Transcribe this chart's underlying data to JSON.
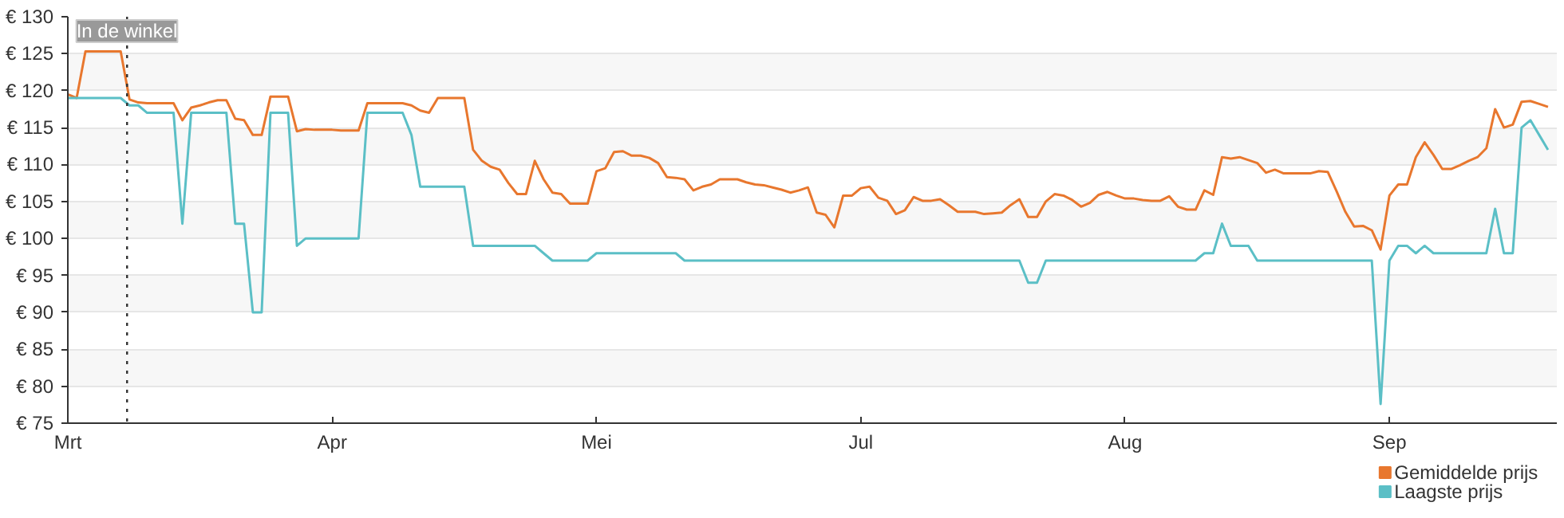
{
  "chart_data": {
    "type": "line",
    "categories": [
      "Mrt",
      null,
      null,
      null,
      null,
      null,
      null,
      null,
      null,
      null,
      null,
      null,
      null,
      null,
      null,
      null,
      null,
      null,
      null,
      null,
      null,
      null,
      null,
      null,
      null,
      null,
      null,
      null,
      null,
      null,
      "Apr",
      null,
      null,
      null,
      null,
      null,
      null,
      null,
      null,
      null,
      null,
      null,
      null,
      null,
      null,
      null,
      null,
      null,
      null,
      null,
      null,
      null,
      null,
      null,
      null,
      null,
      null,
      null,
      null,
      null,
      "Mei",
      null,
      null,
      null,
      null,
      null,
      null,
      null,
      null,
      null,
      null,
      null,
      null,
      null,
      null,
      null,
      null,
      null,
      null,
      null,
      null,
      null,
      null,
      null,
      null,
      null,
      null,
      null,
      null,
      null,
      "Jul",
      null,
      null,
      null,
      null,
      null,
      null,
      null,
      null,
      null,
      null,
      null,
      null,
      null,
      null,
      null,
      null,
      null,
      null,
      null,
      null,
      null,
      null,
      null,
      null,
      null,
      null,
      null,
      null,
      null,
      "Aug",
      null,
      null,
      null,
      null,
      null,
      null,
      null,
      null,
      null,
      null,
      null,
      null,
      null,
      null,
      null,
      null,
      null,
      null,
      null,
      null,
      null,
      null,
      null,
      null,
      null,
      null,
      null,
      null,
      null,
      "Sep",
      null,
      null,
      null,
      null,
      null,
      null,
      null,
      null,
      null,
      null,
      null,
      null,
      null,
      null,
      null,
      null,
      null,
      null
    ],
    "ylim": [
      75,
      130
    ],
    "yticks": [
      {
        "value": 75,
        "label": "€ 75"
      },
      {
        "value": 80,
        "label": "€ 80"
      },
      {
        "value": 85,
        "label": "€ 85"
      },
      {
        "value": 90,
        "label": "€ 90"
      },
      {
        "value": 95,
        "label": "€ 95"
      },
      {
        "value": 100,
        "label": "€ 100"
      },
      {
        "value": 105,
        "label": "€ 105"
      },
      {
        "value": 110,
        "label": "€ 110"
      },
      {
        "value": 115,
        "label": "€ 115"
      },
      {
        "value": 120,
        "label": "€ 120"
      },
      {
        "value": 125,
        "label": "€ 125"
      },
      {
        "value": 130,
        "label": "€ 130"
      }
    ],
    "grid": "y",
    "legend": "bottom right",
    "line_style": "solid",
    "annotations": [
      "In de winkel"
    ],
    "series": [
      {
        "name": "Gemiddelde prijs",
        "color": "#e8772e",
        "values": [
          119.5,
          119,
          125.3,
          125.3,
          125.3,
          125.3,
          125.3,
          118.8,
          118.4,
          118.3,
          118.3,
          118.3,
          118.3,
          116,
          117.7,
          118,
          118.4,
          118.7,
          118.7,
          116.2,
          116,
          114,
          114,
          119.2,
          119.2,
          119.2,
          114.5,
          114.8,
          114.7,
          114.7,
          114.7,
          114.6,
          114.6,
          114.6,
          118.3,
          118.3,
          118.3,
          118.3,
          118.3,
          118,
          117.3,
          117,
          119,
          119,
          119,
          119,
          112,
          110.5,
          109.7,
          109.3,
          107.5,
          106,
          106,
          110.5,
          108,
          106.2,
          106,
          104.7,
          104.7,
          104.7,
          109.1,
          109.5,
          111.7,
          111.8,
          111.2,
          111.2,
          110.9,
          110.2,
          108.3,
          108.2,
          108,
          106.5,
          107,
          107.3,
          108,
          108,
          108,
          107.6,
          107.3,
          107.2,
          106.9,
          106.6,
          106.2,
          106.5,
          106.9,
          103.5,
          103.2,
          101.5,
          105.8,
          105.8,
          106.8,
          107,
          105.5,
          105.1,
          103.3,
          103.8,
          105.6,
          105.1,
          105.1,
          105.3,
          104.5,
          103.6,
          103.6,
          103.6,
          103.3,
          103.4,
          103.5,
          104.5,
          105.3,
          102.9,
          102.9,
          105,
          106,
          105.8,
          105.2,
          104.3,
          104.8,
          105.9,
          106.3,
          105.8,
          105.4,
          105.4,
          105.2,
          105.1,
          105.1,
          105.7,
          104.3,
          103.9,
          103.9,
          106.5,
          105.9,
          111,
          110.8,
          111,
          110.6,
          110.2,
          108.9,
          109.3,
          108.8,
          108.8,
          108.8,
          108.8,
          109.1,
          109,
          106.4,
          103.6,
          101.6,
          101.7,
          101.1,
          98.5,
          105.8,
          107.3,
          107.3,
          111,
          113,
          111.3,
          109.4,
          109.4,
          109.9,
          110.5,
          111,
          112.2,
          117.5,
          115,
          115.4,
          118.5,
          118.6,
          118.2,
          117.8
        ]
      },
      {
        "name": "Laagste prijs",
        "color": "#5bbfc6",
        "values": [
          119,
          119,
          119,
          119,
          119,
          119,
          119,
          118,
          118,
          117,
          117,
          117,
          117,
          102,
          117,
          117,
          117,
          117,
          117,
          102,
          102,
          90,
          90,
          117,
          117,
          117,
          99,
          100,
          100,
          100,
          100,
          100,
          100,
          100,
          117,
          117,
          117,
          117,
          117,
          114,
          107,
          107,
          107,
          107,
          107,
          107,
          99,
          99,
          99,
          99,
          99,
          99,
          99,
          99,
          98,
          97,
          97,
          97,
          97,
          97,
          98,
          98,
          98,
          98,
          98,
          98,
          98,
          98,
          98,
          98,
          97,
          97,
          97,
          97,
          97,
          97,
          97,
          97,
          97,
          97,
          97,
          97,
          97,
          97,
          97,
          97,
          97,
          97,
          97,
          97,
          97,
          97,
          97,
          97,
          97,
          97,
          97,
          97,
          97,
          97,
          97,
          97,
          97,
          97,
          97,
          97,
          97,
          97,
          97,
          94,
          94,
          97,
          97,
          97,
          97,
          97,
          97,
          97,
          97,
          97,
          97,
          97,
          97,
          97,
          97,
          97,
          97,
          97,
          97,
          98,
          98,
          102,
          99,
          99,
          99,
          97,
          97,
          97,
          97,
          97,
          97,
          97,
          97,
          97,
          97,
          97,
          97,
          97,
          97,
          77.6,
          97,
          99,
          99,
          98,
          99,
          98,
          98,
          98,
          98,
          98,
          98,
          98,
          104,
          98,
          98,
          115,
          116,
          114,
          112
        ]
      }
    ]
  }
}
